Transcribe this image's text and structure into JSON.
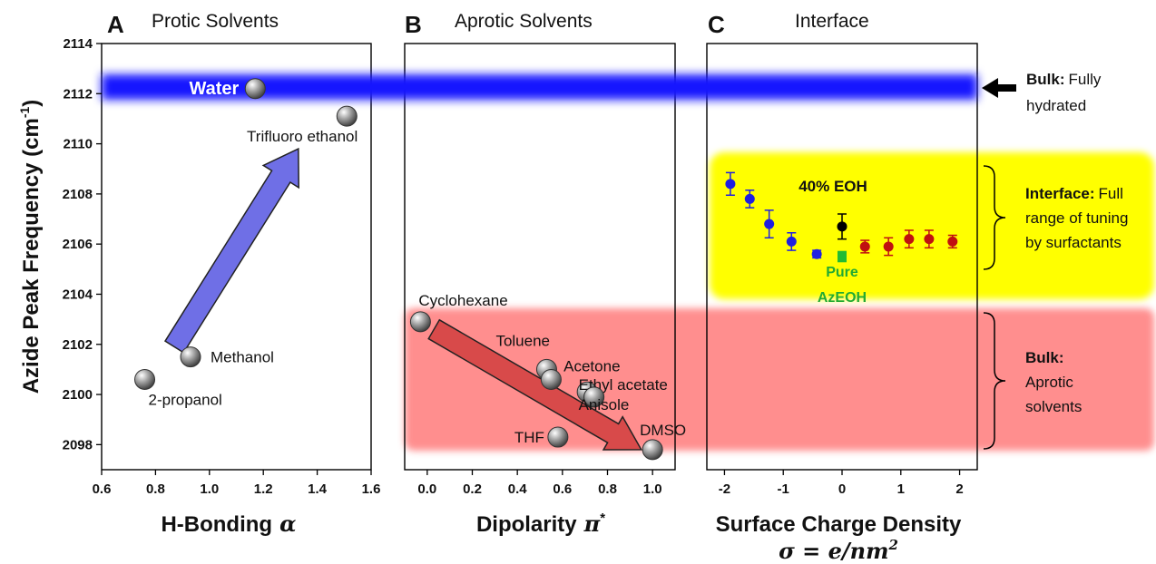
{
  "chart_data": [
    {
      "panel": "A",
      "title": "Protic Solvents",
      "type": "scatter",
      "xlabel": "H-Bonding",
      "xlabel_symbol": "α",
      "ylabel": "Azide Peak Frequency (cm",
      "ylabel_sup": "-1",
      "ylabel_end": ")",
      "xlim": [
        0.6,
        1.6
      ],
      "ylim": [
        2097,
        2114
      ],
      "xticks": [
        "0.6",
        "0.8",
        "1.0",
        "1.2",
        "1.4",
        "1.6"
      ],
      "yticks": [
        "2098",
        "2100",
        "2102",
        "2104",
        "2106",
        "2108",
        "2110",
        "2112",
        "2114"
      ],
      "points": [
        {
          "label": "Water",
          "x": 1.17,
          "y": 2112.2
        },
        {
          "label": "Trifluoro ethanol",
          "x": 1.51,
          "y": 2111.1
        },
        {
          "label": "Methanol",
          "x": 0.93,
          "y": 2101.5
        },
        {
          "label": "2-propanol",
          "x": 0.76,
          "y": 2100.6
        }
      ]
    },
    {
      "panel": "B",
      "title": "Aprotic Solvents",
      "type": "scatter",
      "xlabel": "Dipolarity",
      "xlabel_symbol": "π",
      "xlabel_sup": "*",
      "xlim": [
        -0.1,
        1.1
      ],
      "ylim": [
        2097,
        2114
      ],
      "xticks": [
        "0.0",
        "0.2",
        "0.4",
        "0.6",
        "0.8",
        "1.0"
      ],
      "points": [
        {
          "label": "Cyclohexane",
          "x": -0.03,
          "y": 2102.9
        },
        {
          "label": "Toluene",
          "x": 0.53,
          "y": 2101.0
        },
        {
          "label": "",
          "x": 0.55,
          "y": 2100.6
        },
        {
          "label": "Acetone",
          "x": 0.71,
          "y": 2100.1
        },
        {
          "label": "Ethyl acetate",
          "x": 0.74,
          "y": 2099.9
        },
        {
          "label": "Anisole",
          "x": 0.74,
          "y": 2099.9
        },
        {
          "label": "THF",
          "x": 0.58,
          "y": 2098.3
        },
        {
          "label": "DMSO",
          "x": 1.0,
          "y": 2097.8
        }
      ]
    },
    {
      "panel": "C",
      "title": "Interface",
      "type": "scatter",
      "xlabel": "Surface Charge Density",
      "xlabel_formula": "σ = e/nm",
      "xlabel_formula_sup": "2",
      "xlim": [
        -2.3,
        2.3
      ],
      "ylim": [
        2097,
        2114
      ],
      "xticks": [
        "-2",
        "-1",
        "0",
        "1",
        "2"
      ],
      "series": [
        {
          "group": "negative",
          "color": "#1f1fe0",
          "x": [
            -1.9,
            -1.57,
            -1.24,
            -0.86,
            -0.43
          ],
          "y": [
            2108.4,
            2107.8,
            2106.8,
            2106.1,
            2105.6
          ],
          "err": [
            0.45,
            0.35,
            0.55,
            0.35,
            0.15
          ]
        },
        {
          "group": "positive",
          "color": "#c01010",
          "x": [
            0.39,
            0.79,
            1.14,
            1.48,
            1.88
          ],
          "y": [
            2105.9,
            2105.9,
            2106.2,
            2106.2,
            2106.1
          ],
          "err": [
            0.25,
            0.35,
            0.35,
            0.35,
            0.25
          ]
        },
        {
          "group": "40% EOH",
          "color": "#000000",
          "x": [
            0.0
          ],
          "y": [
            2106.7
          ],
          "err": [
            0.5
          ]
        },
        {
          "group": "Pure AzEOH",
          "color": "#22bb33",
          "x": [
            0.0
          ],
          "y": [
            2105.5
          ],
          "err": [
            0.2
          ]
        }
      ],
      "labels": {
        "eoh": "40% EOH",
        "pure1": "Pure",
        "pure2": "AzEOH"
      }
    }
  ],
  "annotations": {
    "bulk_hydrated_bold": "Bulk:",
    "bulk_hydrated_rest": "Fully",
    "bulk_hydrated_line2": "hydrated",
    "interface_bold": "Interface:",
    "interface_rest": "Full",
    "interface_line2": "range of tuning",
    "interface_line3": "by surfactants",
    "bulk_aprotic_bold": "Bulk:",
    "bulk_aprotic_line2": "Aprotic",
    "bulk_aprotic_line3": "solvents"
  },
  "colors": {
    "water_band": "#1a1aff",
    "aprotic_band": "#ff8080",
    "interface_band": "#ffff00",
    "protic_arrow": "#6f6fe6",
    "aprotic_arrow": "#d84a4a"
  }
}
